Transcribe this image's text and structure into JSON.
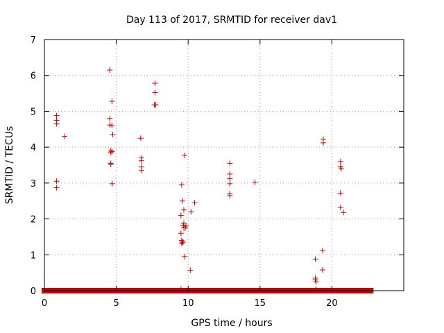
{
  "chart_data": {
    "type": "scatter",
    "title": "Day 113 of 2017, SRMTID for receiver dav1",
    "xlabel": "GPS time / hours",
    "ylabel": "SRMTID / TECUs",
    "xlim": [
      0,
      25
    ],
    "ylim": [
      0,
      7
    ],
    "xticks": [
      0,
      5,
      10,
      15,
      20
    ],
    "yticks": [
      0,
      1,
      2,
      3,
      4,
      5,
      6,
      7
    ],
    "grid": true,
    "marker": "+",
    "color": "#cc0000",
    "baseline_segments": [
      [
        0.0,
        4.55
      ],
      [
        4.75,
        9.35
      ],
      [
        9.6,
        12.7
      ],
      [
        12.85,
        22.7
      ]
    ],
    "points": [
      [
        0.85,
        4.88
      ],
      [
        0.85,
        4.75
      ],
      [
        0.85,
        4.65
      ],
      [
        0.85,
        3.05
      ],
      [
        0.85,
        2.87
      ],
      [
        1.4,
        4.3
      ],
      [
        4.55,
        6.15
      ],
      [
        4.55,
        4.8
      ],
      [
        4.55,
        4.62
      ],
      [
        4.7,
        4.6
      ],
      [
        4.7,
        5.28
      ],
      [
        4.75,
        4.35
      ],
      [
        4.62,
        3.9
      ],
      [
        4.62,
        3.85
      ],
      [
        4.7,
        3.88
      ],
      [
        4.62,
        3.55
      ],
      [
        4.62,
        3.52
      ],
      [
        4.72,
        2.98
      ],
      [
        6.7,
        4.25
      ],
      [
        6.75,
        3.7
      ],
      [
        6.75,
        3.62
      ],
      [
        6.75,
        3.45
      ],
      [
        6.75,
        3.35
      ],
      [
        7.7,
        5.78
      ],
      [
        7.7,
        5.52
      ],
      [
        7.65,
        5.18
      ],
      [
        7.75,
        5.18
      ],
      [
        9.55,
        2.95
      ],
      [
        9.6,
        2.5
      ],
      [
        9.5,
        2.1
      ],
      [
        9.7,
        2.25
      ],
      [
        9.75,
        3.77
      ],
      [
        9.7,
        1.88
      ],
      [
        9.65,
        1.82
      ],
      [
        9.8,
        1.75
      ],
      [
        9.7,
        1.75
      ],
      [
        9.85,
        1.8
      ],
      [
        9.5,
        1.6
      ],
      [
        9.55,
        1.4
      ],
      [
        9.6,
        1.35
      ],
      [
        9.55,
        1.32
      ],
      [
        9.65,
        1.35
      ],
      [
        9.75,
        0.95
      ],
      [
        9.5,
        0.05
      ],
      [
        10.2,
        2.2
      ],
      [
        10.45,
        2.45
      ],
      [
        10.15,
        0.57
      ],
      [
        12.9,
        3.55
      ],
      [
        12.9,
        3.25
      ],
      [
        12.9,
        3.12
      ],
      [
        12.9,
        2.98
      ],
      [
        12.9,
        2.7
      ],
      [
        12.9,
        2.65
      ],
      [
        14.65,
        3.02
      ],
      [
        18.85,
        0.88
      ],
      [
        18.85,
        0.35
      ],
      [
        18.85,
        0.3
      ],
      [
        18.9,
        0.25
      ],
      [
        18.9,
        0.05
      ],
      [
        19.35,
        1.12
      ],
      [
        19.35,
        0.58
      ],
      [
        19.4,
        4.22
      ],
      [
        19.4,
        4.12
      ],
      [
        20.6,
        3.6
      ],
      [
        20.6,
        3.45
      ],
      [
        20.65,
        3.4
      ],
      [
        20.6,
        2.72
      ],
      [
        20.6,
        2.32
      ],
      [
        20.8,
        2.18
      ]
    ]
  }
}
